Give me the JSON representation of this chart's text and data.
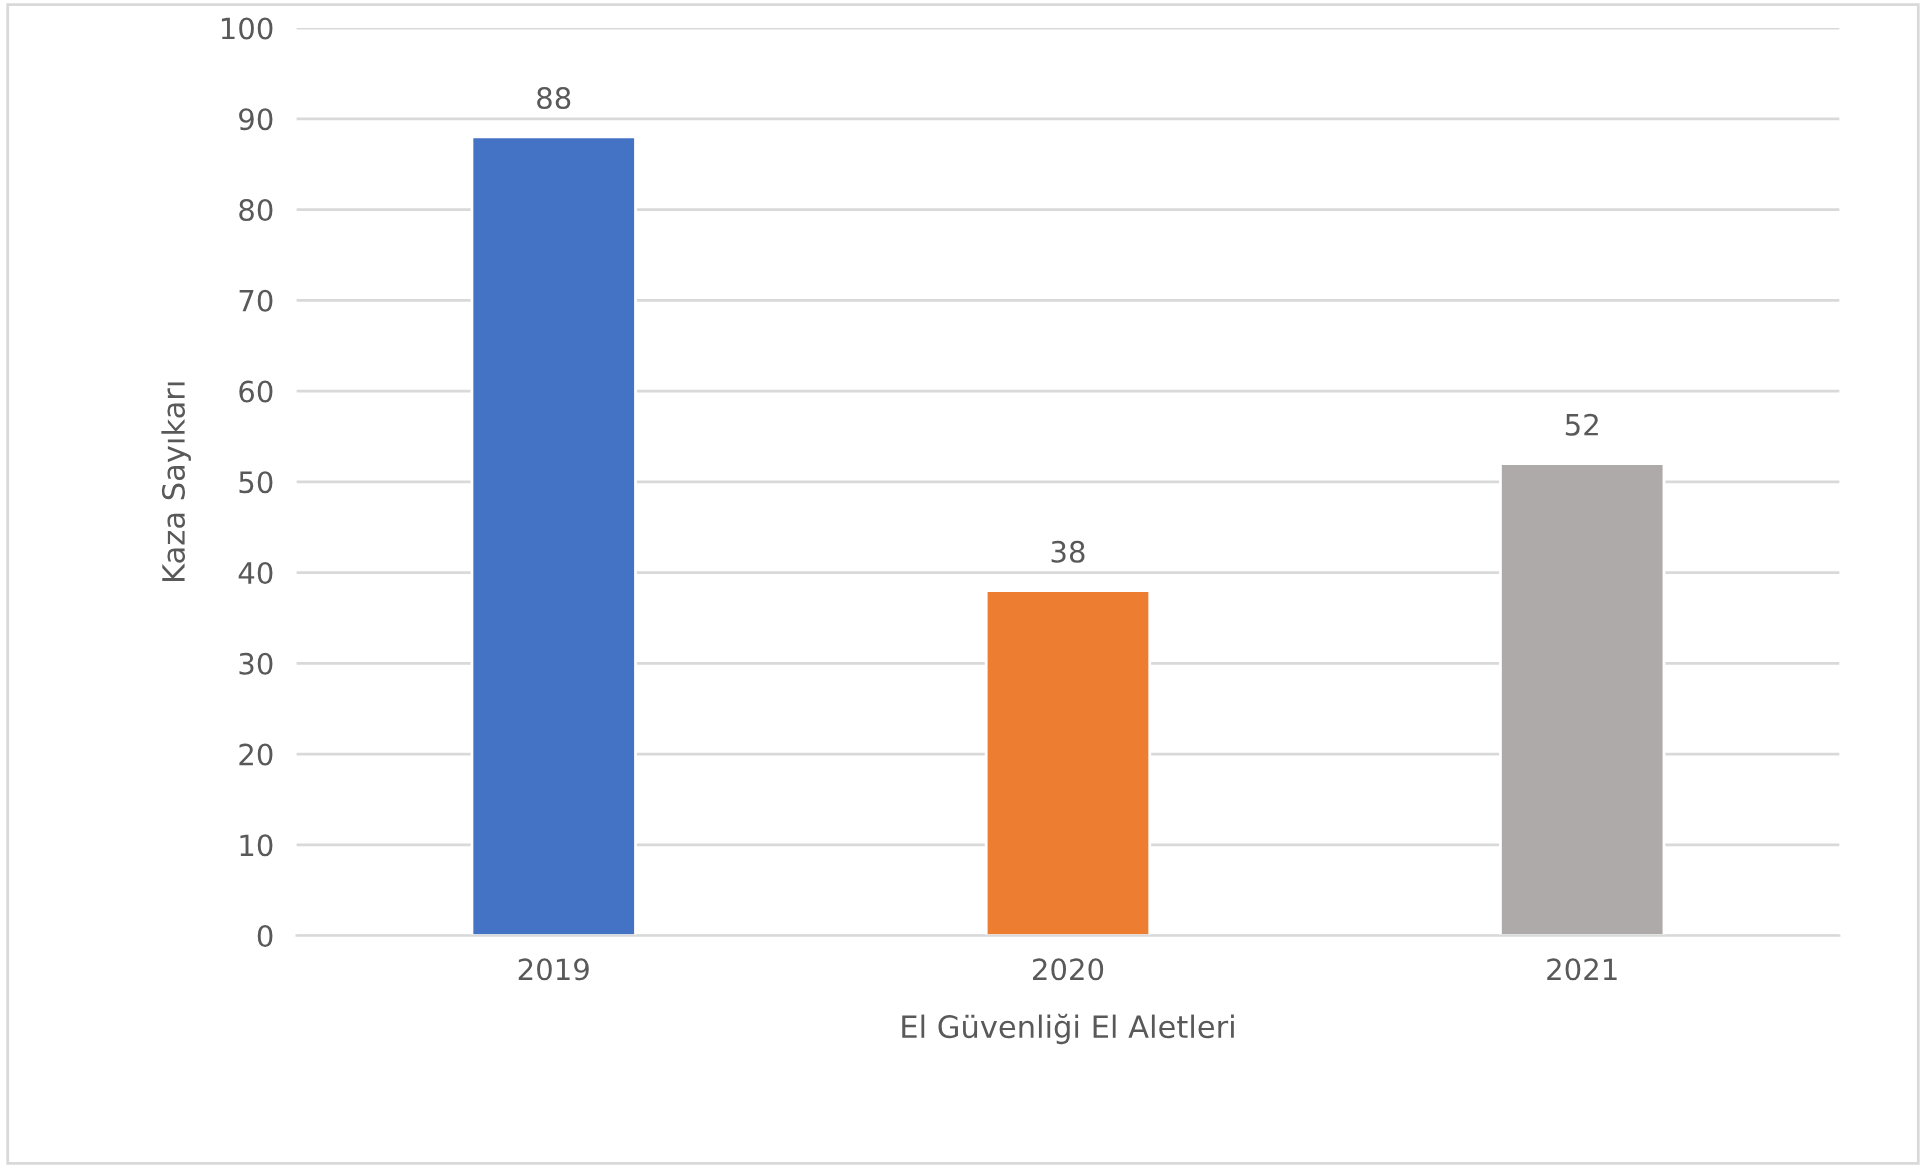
{
  "chart_data": {
    "type": "bar",
    "xlabel": "El Güvenliği El Aletleri",
    "ylabel": "Kaza Sayıkarı",
    "categories": [
      "2019",
      "2020",
      "2021"
    ],
    "values": [
      88,
      38,
      52
    ],
    "colors": [
      "#4472c4",
      "#ed7d31",
      "#aeaaaa"
    ],
    "ylim": [
      0,
      100
    ],
    "yticks": [
      0,
      10,
      20,
      30,
      40,
      50,
      60,
      70,
      80,
      90,
      100
    ],
    "grid": "y",
    "data_labels": true
  }
}
